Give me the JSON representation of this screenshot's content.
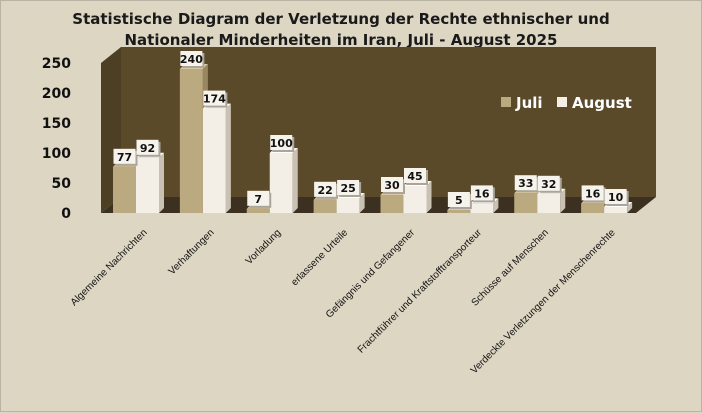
{
  "colors": {
    "background": "#ddd6c3",
    "plot_back": "#5b4a2a",
    "plot_side": "#4d3f24",
    "floor": "#3c3120",
    "juli_front": "#bba97f",
    "juli_top": "#d8c9a2",
    "juli_side": "#988760",
    "aug_front": "#f4efe6",
    "aug_top": "#ffffff",
    "aug_side": "#c9c2b4",
    "label_box": "#f6f3ed",
    "label_shadow": "#aaa49a"
  },
  "chart_data": {
    "type": "bar",
    "title": "Statistische Diagram der Verletzung der Rechte ethnischer und Nationaler Minderheiten im Iran, Juli - August 2025",
    "title_lines": [
      "Statistische Diagram der Verletzung der Rechte ethnischer und",
      "Nationaler Minderheiten im Iran, Juli - August 2025"
    ],
    "categories": [
      "Algemeine Nachrichten",
      "Verhaftungen",
      "Vorladung",
      "erlassene Urteile",
      "Gefängnis und Gefangener",
      "Frachtführer und Kraftstofftransporteur",
      "Schüsse auf Menschen",
      "Verdeckte Verletzungen der Menschenrechte"
    ],
    "series": [
      {
        "name": "Juli",
        "values": [
          77,
          240,
          7,
          22,
          30,
          5,
          33,
          16
        ]
      },
      {
        "name": "August",
        "values": [
          92,
          174,
          100,
          25,
          45,
          16,
          32,
          10
        ]
      }
    ],
    "ylim": [
      0,
      250
    ],
    "yticks": [
      0,
      50,
      100,
      150,
      200,
      250
    ],
    "xlabel": "",
    "ylabel": "",
    "legend_position": "right"
  }
}
